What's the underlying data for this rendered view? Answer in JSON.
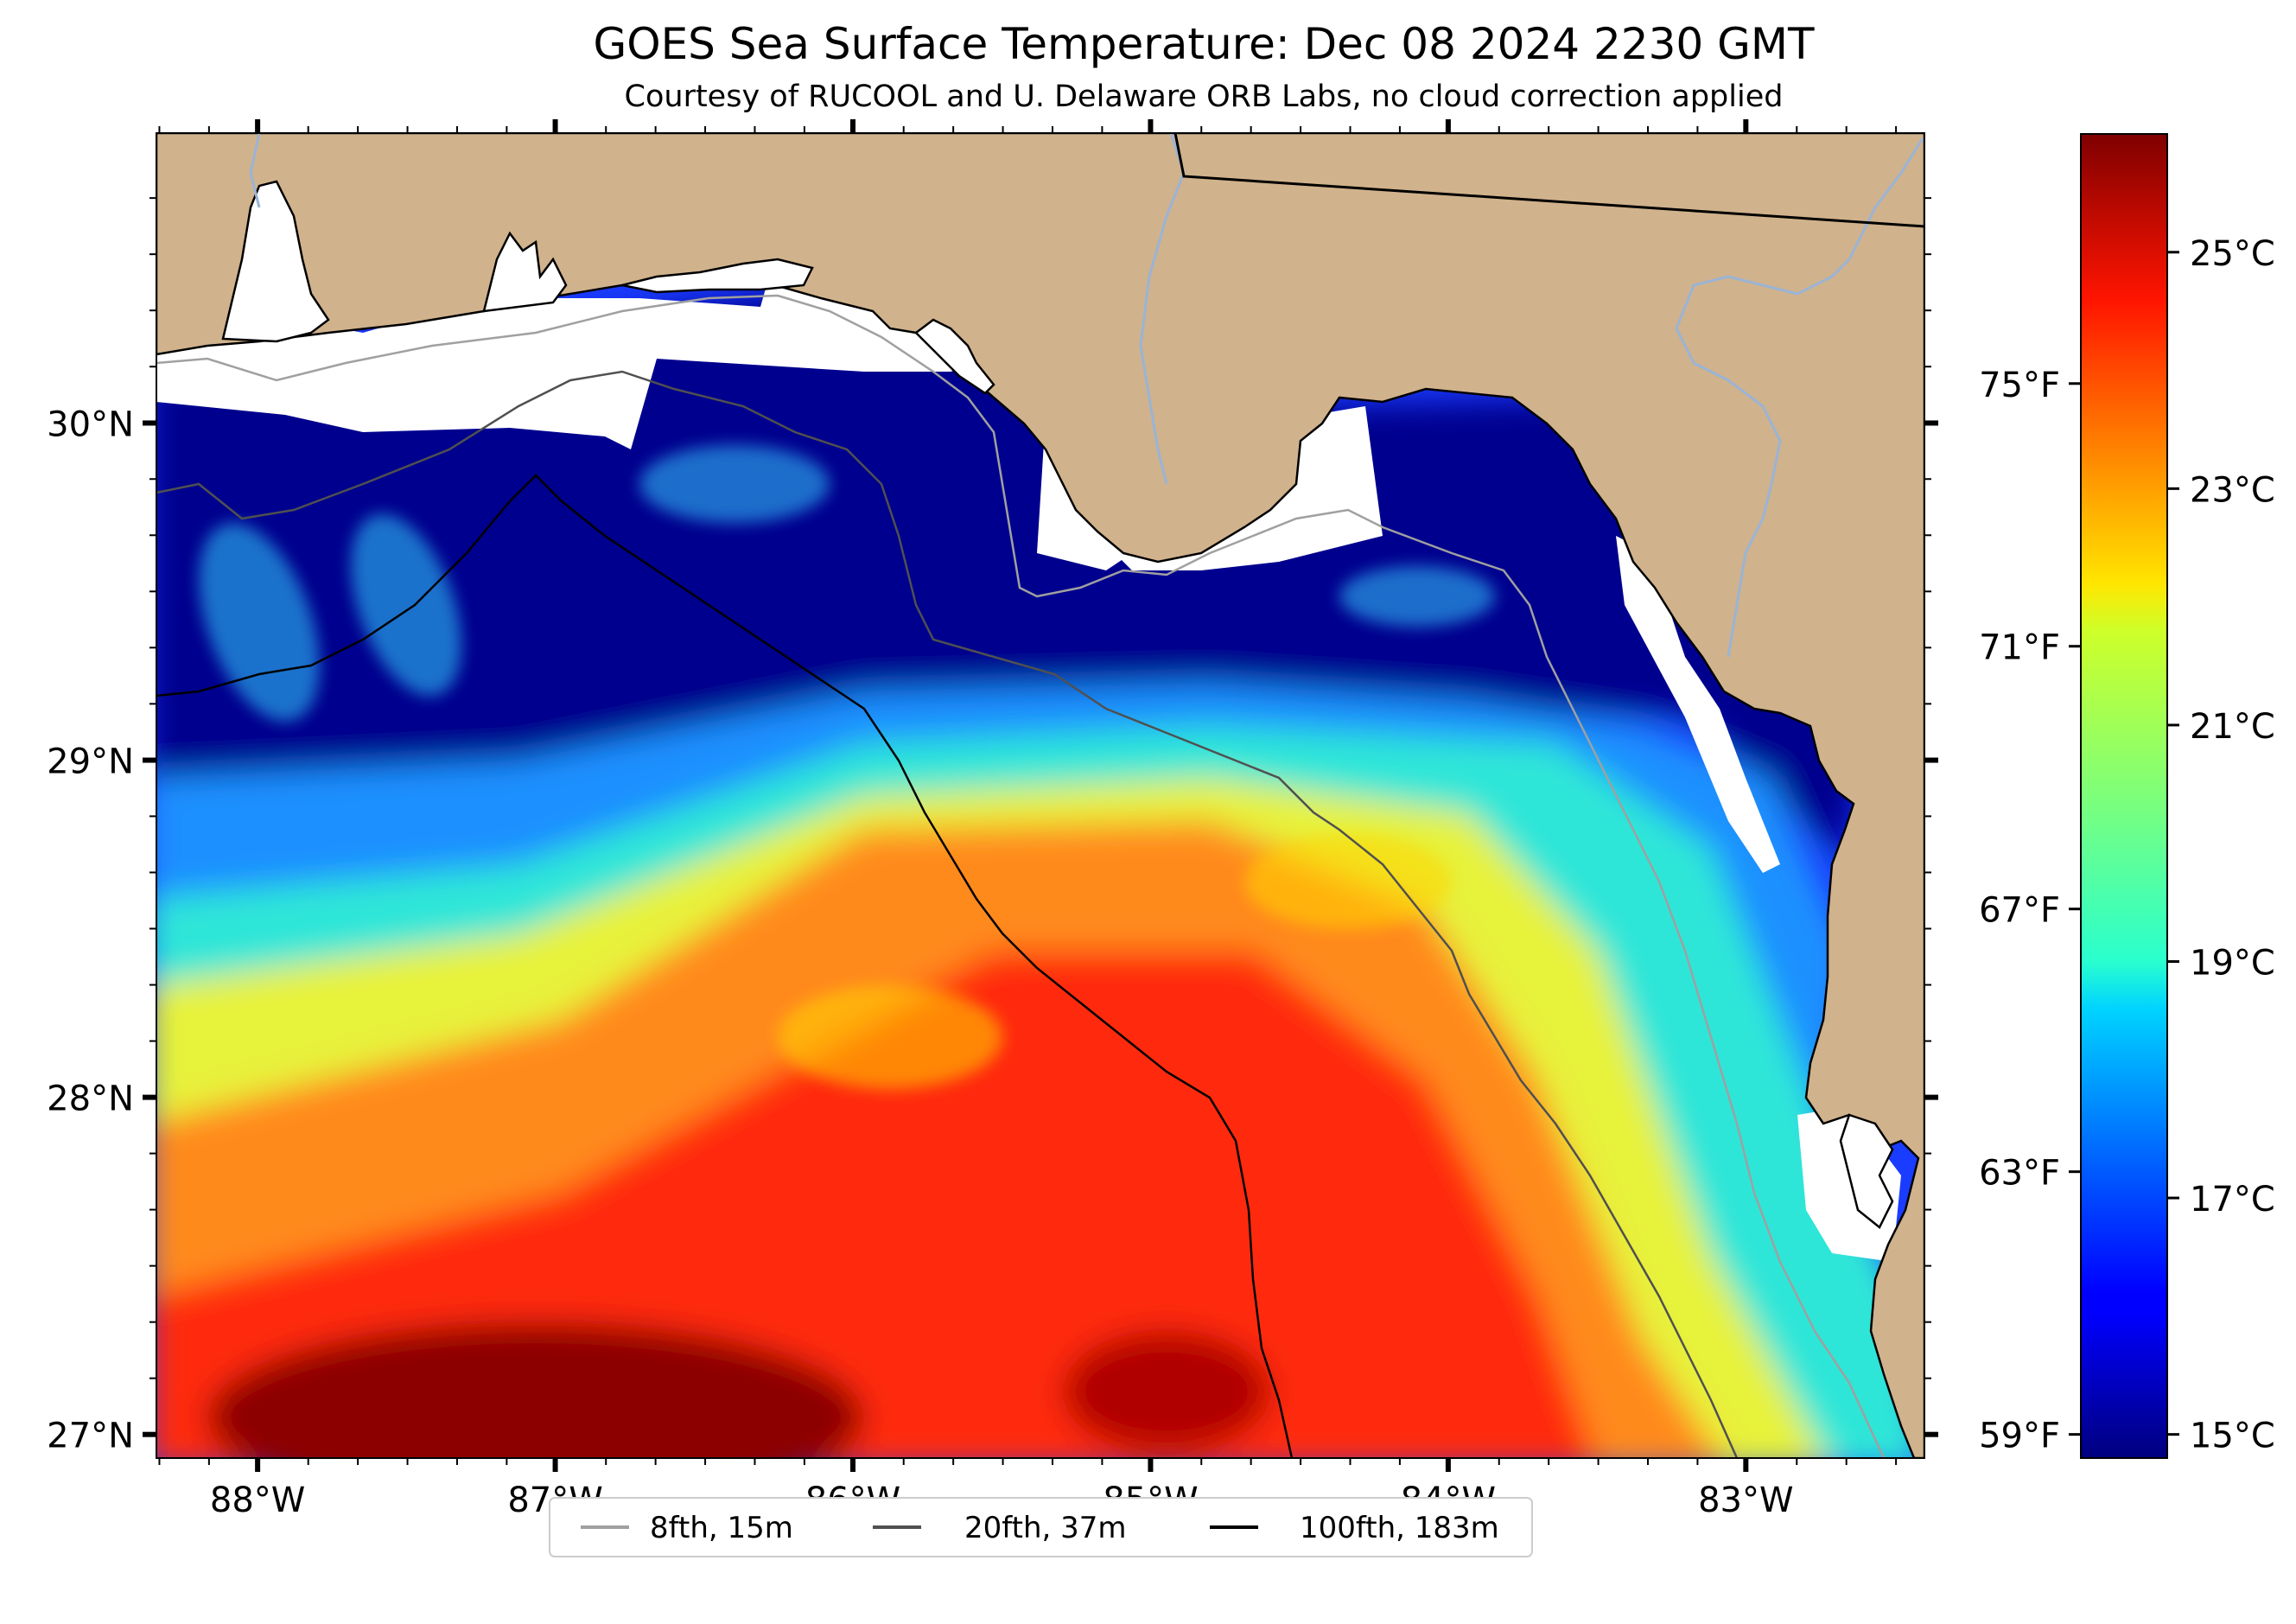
{
  "title": "GOES Sea Surface Temperature: Dec 08 2024 2230 GMT",
  "subtitle": "Courtesy of RUCOOL and U. Delaware ORB Labs, no cloud correction applied",
  "colors": {
    "land": "#d0b28c",
    "no_data": "#ffffff",
    "river": "#9ab4d6",
    "coastline": "#000000",
    "isobath_8fth": "#a0a0a0",
    "isobath_20fth": "#505050",
    "isobath_100fth": "#000000"
  },
  "map": {
    "lon_range": [
      -88.34,
      -82.4
    ],
    "lat_range": [
      26.93,
      30.86
    ],
    "lat_ticks": [
      {
        "value": 30,
        "label": "30°N"
      },
      {
        "value": 29,
        "label": "29°N"
      },
      {
        "value": 28,
        "label": "28°N"
      },
      {
        "value": 27,
        "label": "27°N"
      }
    ],
    "lon_ticks": [
      {
        "value": -88,
        "label": "88°W"
      },
      {
        "value": -87,
        "label": "87°W"
      },
      {
        "value": -86,
        "label": "86°W"
      },
      {
        "value": -85,
        "label": "85°W"
      },
      {
        "value": -84,
        "label": "84°W"
      },
      {
        "value": -83,
        "label": "83°W"
      }
    ]
  },
  "colorbar": {
    "colormap": "jet",
    "range_c": [
      14.8,
      26.0
    ],
    "celsius_ticks": [
      "25°C",
      "23°C",
      "21°C",
      "19°C",
      "17°C",
      "15°C"
    ],
    "celsius_values": [
      25,
      23,
      21,
      19,
      17,
      15
    ],
    "fahrenheit_ticks": [
      "75°F",
      "71°F",
      "67°F",
      "63°F",
      "59°F"
    ],
    "fahrenheit_values": [
      75,
      71,
      67,
      63,
      59
    ]
  },
  "legend": {
    "items": [
      {
        "label": "8fth, 15m",
        "color": "#a0a0a0"
      },
      {
        "label": "20fth, 37m",
        "color": "#505050"
      },
      {
        "label": "100fth, 183m",
        "color": "#000000"
      }
    ]
  }
}
